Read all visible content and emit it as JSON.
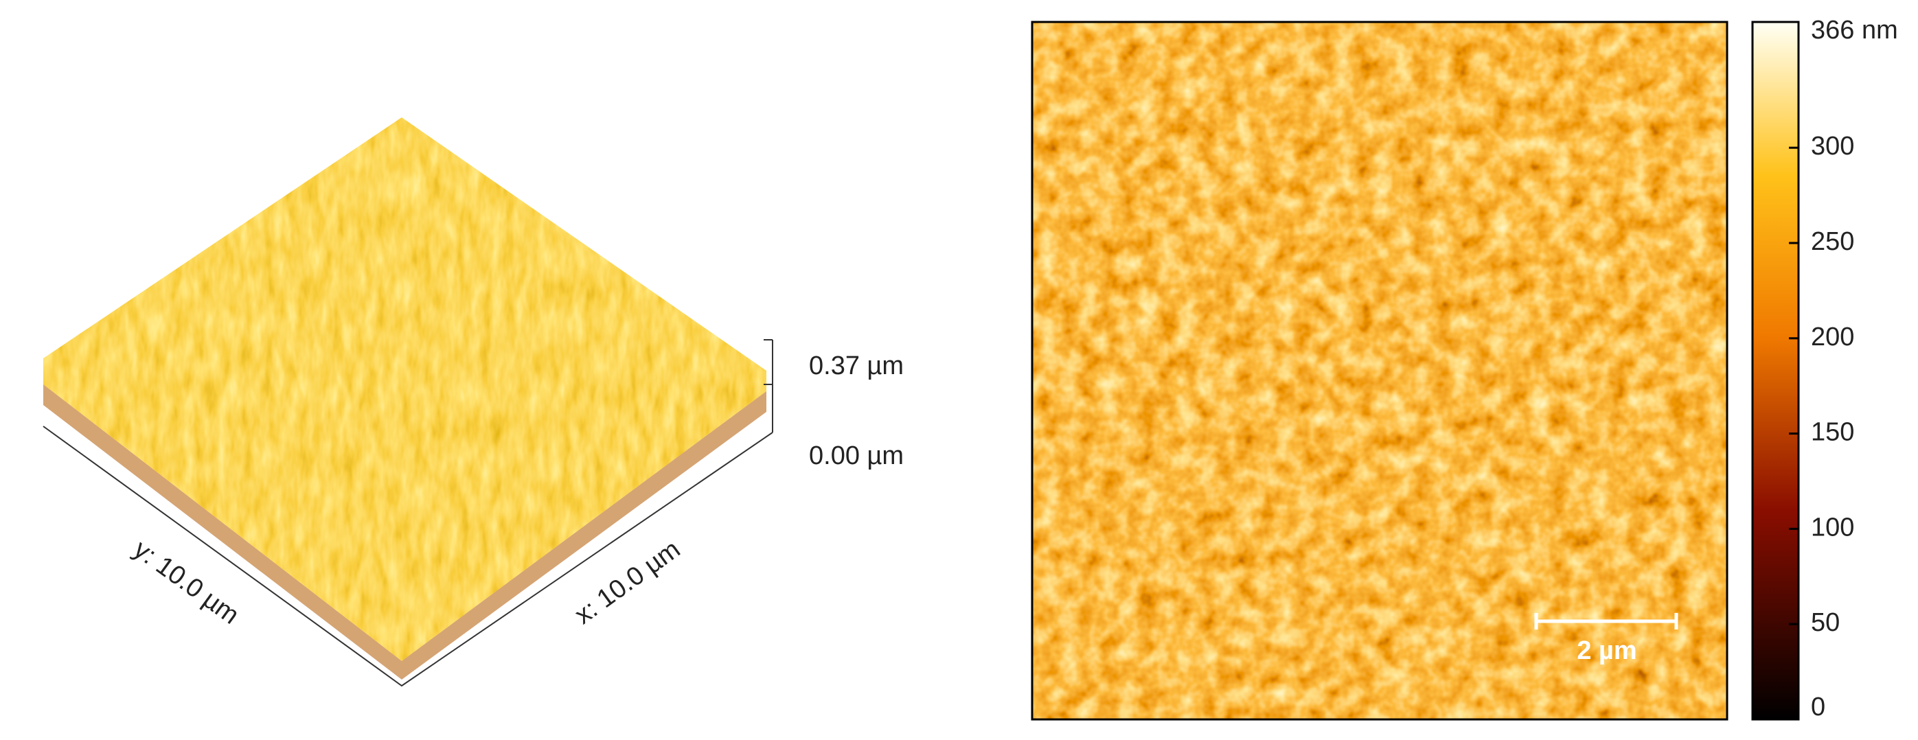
{
  "surface_3d": {
    "z_labels": [
      "0.37 µm",
      "0.00 µm"
    ],
    "y_label": "y: 10.0 µm",
    "x_label": "x: 10.0 µm"
  },
  "height_map": {
    "scale_bar_label": "2 µm",
    "colorbar": {
      "lim": [
        0,
        366
      ],
      "ticks": [
        {
          "value": 366,
          "label": "366 nm"
        },
        300,
        250,
        200,
        150,
        100,
        50,
        0
      ]
    }
  }
}
